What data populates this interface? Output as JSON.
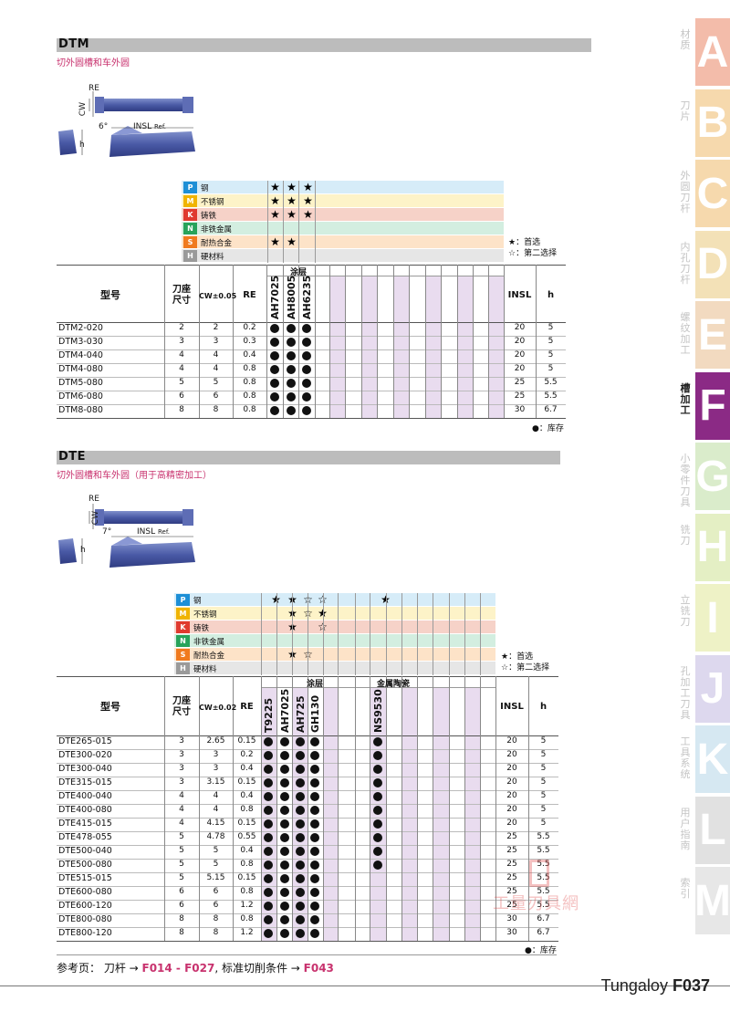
{
  "dtm": {
    "title": "DTM",
    "subtitle": "切外圆槽和车外圆",
    "drawing": {
      "re": "RE",
      "cw": "CW",
      "angle": "6°",
      "insl": "INSL",
      "ref": "Ref.",
      "h": "h"
    },
    "materials": [
      {
        "code": "P",
        "name": "钢",
        "color": "#1d8fd6",
        "bg": "#d6ecf8",
        "stars": [
          "★",
          "★",
          "★"
        ]
      },
      {
        "code": "M",
        "name": "不锈钢",
        "color": "#f0b400",
        "bg": "#fdf3c8",
        "stars": [
          "★",
          "★",
          "★"
        ]
      },
      {
        "code": "K",
        "name": "铸铁",
        "color": "#e03a2f",
        "bg": "#f6d2c8",
        "stars": [
          "★",
          "★",
          "★"
        ]
      },
      {
        "code": "N",
        "name": "非铁金属",
        "color": "#27a35a",
        "bg": "#d3eee0",
        "stars": [
          "",
          "",
          ""
        ]
      },
      {
        "code": "S",
        "name": "耐热合金",
        "color": "#f07a1e",
        "bg": "#fde3c8",
        "stars": [
          "★",
          "★",
          ""
        ]
      },
      {
        "code": "H",
        "name": "硬材料",
        "color": "#9a9a9a",
        "bg": "#e6e6e6",
        "stars": [
          "",
          "",
          ""
        ]
      }
    ],
    "legend": {
      "first": "★：首选",
      "second": "☆：第二选择"
    },
    "headers": {
      "model": "型号",
      "holder_1": "刀座",
      "holder_2": "尺寸",
      "cw": "CW±0.05",
      "re": "RE",
      "coating": "涂层",
      "insl": "INSL",
      "h": "h"
    },
    "grades": [
      "AH7025",
      "AH8005",
      "AH6235"
    ],
    "rows": [
      {
        "model": "DTM2-020",
        "holder": "2",
        "cw": "2",
        "re": "0.2",
        "insl": "20",
        "h": "5"
      },
      {
        "model": "DTM3-030",
        "holder": "3",
        "cw": "3",
        "re": "0.3",
        "insl": "20",
        "h": "5"
      },
      {
        "model": "DTM4-040",
        "holder": "4",
        "cw": "4",
        "re": "0.4",
        "insl": "20",
        "h": "5"
      },
      {
        "model": "DTM4-080",
        "holder": "4",
        "cw": "4",
        "re": "0.8",
        "insl": "20",
        "h": "5"
      },
      {
        "model": "DTM5-080",
        "holder": "5",
        "cw": "5",
        "re": "0.8",
        "insl": "25",
        "h": "5.5"
      },
      {
        "model": "DTM6-080",
        "holder": "6",
        "cw": "6",
        "re": "0.8",
        "insl": "25",
        "h": "5.5"
      },
      {
        "model": "DTM8-080",
        "holder": "8",
        "cw": "8",
        "re": "0.8",
        "insl": "30",
        "h": "6.7"
      }
    ],
    "stock_note": "●：库存"
  },
  "dte": {
    "title": "DTE",
    "subtitle": "切外圆槽和车外圆（用于高精密加工）",
    "drawing": {
      "re": "RE",
      "cw": "CW",
      "angle": "7°",
      "insl": "INSL",
      "ref": "Ref.",
      "h": "h"
    },
    "materials": [
      {
        "code": "P",
        "name": "钢",
        "color": "#1d8fd6",
        "bg": "#d6ecf8",
        "stars": [
          "★",
          "★",
          "☆",
          "☆",
          "★"
        ]
      },
      {
        "code": "M",
        "name": "不锈钢",
        "color": "#f0b400",
        "bg": "#fdf3c8",
        "stars": [
          "",
          "★",
          "☆",
          "★",
          ""
        ]
      },
      {
        "code": "K",
        "name": "铸铁",
        "color": "#e03a2f",
        "bg": "#f6d2c8",
        "stars": [
          "",
          "★",
          "",
          "☆",
          ""
        ]
      },
      {
        "code": "N",
        "name": "非铁金属",
        "color": "#27a35a",
        "bg": "#d3eee0",
        "stars": [
          "",
          "",
          "",
          "",
          ""
        ]
      },
      {
        "code": "S",
        "name": "耐热合金",
        "color": "#f07a1e",
        "bg": "#fde3c8",
        "stars": [
          "",
          "★",
          "☆",
          "",
          ""
        ]
      },
      {
        "code": "H",
        "name": "硬材料",
        "color": "#9a9a9a",
        "bg": "#e6e6e6",
        "stars": [
          "",
          "",
          "",
          "",
          ""
        ]
      }
    ],
    "legend": {
      "first": "★：首选",
      "second": "☆：第二选择"
    },
    "headers": {
      "model": "型号",
      "holder_1": "刀座",
      "holder_2": "尺寸",
      "cw": "CW±0.02",
      "re": "RE",
      "coating": "涂层",
      "cermet": "金属陶瓷",
      "insl": "INSL",
      "h": "h"
    },
    "grades": [
      "T9225",
      "AH7025",
      "AH725",
      "GH130",
      "NS9530"
    ],
    "rows": [
      {
        "model": "DTE265-015",
        "holder": "3",
        "cw": "2.65",
        "re": "0.15",
        "insl": "20",
        "h": "5",
        "cermet": true
      },
      {
        "model": "DTE300-020",
        "holder": "3",
        "cw": "3",
        "re": "0.2",
        "insl": "20",
        "h": "5",
        "cermet": true
      },
      {
        "model": "DTE300-040",
        "holder": "3",
        "cw": "3",
        "re": "0.4",
        "insl": "20",
        "h": "5",
        "cermet": true
      },
      {
        "model": "DTE315-015",
        "holder": "3",
        "cw": "3.15",
        "re": "0.15",
        "insl": "20",
        "h": "5",
        "cermet": true
      },
      {
        "model": "DTE400-040",
        "holder": "4",
        "cw": "4",
        "re": "0.4",
        "insl": "20",
        "h": "5",
        "cermet": true
      },
      {
        "model": "DTE400-080",
        "holder": "4",
        "cw": "4",
        "re": "0.8",
        "insl": "20",
        "h": "5",
        "cermet": true
      },
      {
        "model": "DTE415-015",
        "holder": "4",
        "cw": "4.15",
        "re": "0.15",
        "insl": "20",
        "h": "5",
        "cermet": true
      },
      {
        "model": "DTE478-055",
        "holder": "5",
        "cw": "4.78",
        "re": "0.55",
        "insl": "25",
        "h": "5.5",
        "cermet": true
      },
      {
        "model": "DTE500-040",
        "holder": "5",
        "cw": "5",
        "re": "0.4",
        "insl": "25",
        "h": "5.5",
        "cermet": true
      },
      {
        "model": "DTE500-080",
        "holder": "5",
        "cw": "5",
        "re": "0.8",
        "insl": "25",
        "h": "5.5",
        "cermet": true
      },
      {
        "model": "DTE515-015",
        "holder": "5",
        "cw": "5.15",
        "re": "0.15",
        "insl": "25",
        "h": "5.5",
        "cermet": false
      },
      {
        "model": "DTE600-080",
        "holder": "6",
        "cw": "6",
        "re": "0.8",
        "insl": "25",
        "h": "5.5",
        "cermet": false
      },
      {
        "model": "DTE600-120",
        "holder": "6",
        "cw": "6",
        "re": "1.2",
        "insl": "25",
        "h": "5.5",
        "cermet": false
      },
      {
        "model": "DTE800-080",
        "holder": "8",
        "cw": "8",
        "re": "0.8",
        "insl": "30",
        "h": "6.7",
        "cermet": false
      },
      {
        "model": "DTE800-120",
        "holder": "8",
        "cw": "8",
        "re": "1.2",
        "insl": "30",
        "h": "6.7",
        "cermet": false
      }
    ],
    "stock_note": "●：库存"
  },
  "footer": {
    "ref_prefix": "参考页： 刀杆 → ",
    "ref_range": "F014 - F027",
    "ref_mid": ", 标准切削条件 → ",
    "ref_page": "F043",
    "brand": "Tungaloy",
    "page": "F037"
  },
  "watermark": {
    "text": "工量刃具網"
  },
  "side_tabs": [
    {
      "letter": "A",
      "label": "材质",
      "color": "#f3b9a6",
      "active": false
    },
    {
      "letter": "B",
      "label": "刀片",
      "color": "#f6d7a9",
      "active": false
    },
    {
      "letter": "C",
      "label": "外圆刀杆",
      "color": "#f6d7a9",
      "active": false
    },
    {
      "letter": "D",
      "label": "内孔刀杆",
      "color": "#f3e0b4",
      "active": false
    },
    {
      "letter": "E",
      "label": "螺纹加工",
      "color": "#f2d9bd",
      "active": false
    },
    {
      "letter": "F",
      "label": "槽加工",
      "color": "#8b2a85",
      "active": true
    },
    {
      "letter": "G",
      "label": "小零件刀具",
      "color": "#d9ecc9",
      "active": false
    },
    {
      "letter": "H",
      "label": "铣刀",
      "color": "#e3efc1",
      "active": false
    },
    {
      "letter": "I",
      "label": "立铣刀",
      "color": "#eef2c4",
      "active": false
    },
    {
      "letter": "J",
      "label": "孔加工刀具",
      "color": "#dcd6ee",
      "active": false
    },
    {
      "letter": "K",
      "label": "工具系统",
      "color": "#d4e7f2",
      "active": false
    },
    {
      "letter": "L",
      "label": "用户指南",
      "color": "#e0e0e0",
      "active": false
    },
    {
      "letter": "M",
      "label": "索引",
      "color": "#e6e6e6",
      "active": false
    }
  ]
}
